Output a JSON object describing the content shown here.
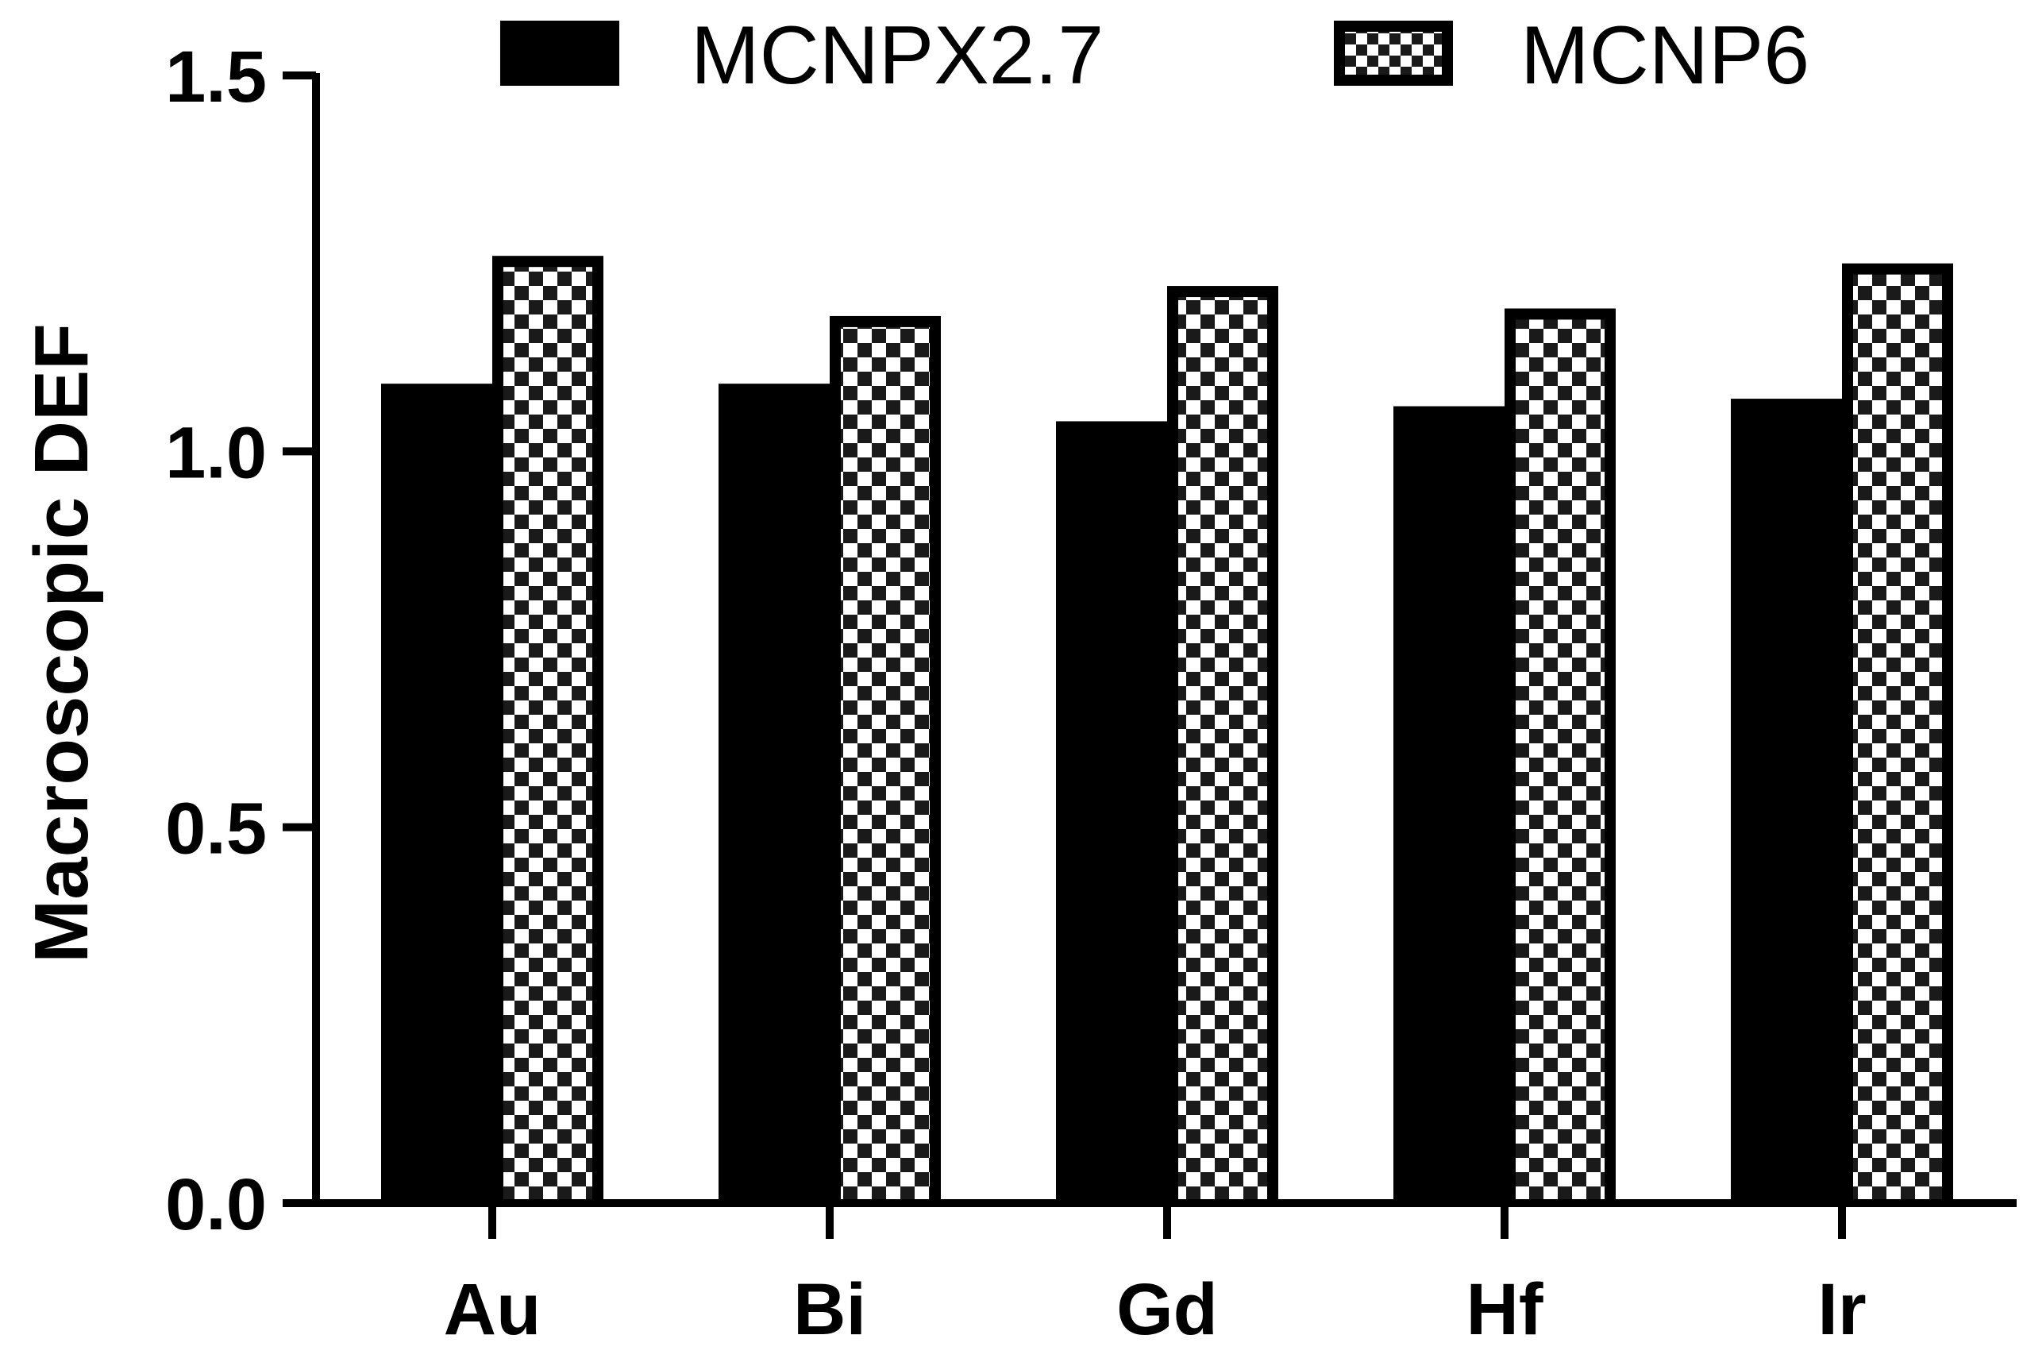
{
  "chart_data": {
    "type": "bar",
    "title": "",
    "xlabel": "",
    "ylabel": "Macroscopic DEF",
    "categories": [
      "Au",
      "Bi",
      "Gd",
      "Hf",
      "Ir"
    ],
    "series": [
      {
        "name": "MCNPX2.7",
        "values": [
          1.09,
          1.09,
          1.04,
          1.06,
          1.07
        ],
        "fill": "solid",
        "color": "#000000"
      },
      {
        "name": "MCNP6",
        "values": [
          1.26,
          1.18,
          1.22,
          1.19,
          1.25
        ],
        "fill": "checkerboard",
        "color": "#000000"
      }
    ],
    "ylim": [
      0,
      1.5
    ],
    "yticks": [
      0.0,
      0.5,
      1.0,
      1.5
    ],
    "ytick_labels": [
      "0.0",
      "0.5",
      "1.0",
      "1.5"
    ],
    "grid": false,
    "legend_position": "top"
  }
}
